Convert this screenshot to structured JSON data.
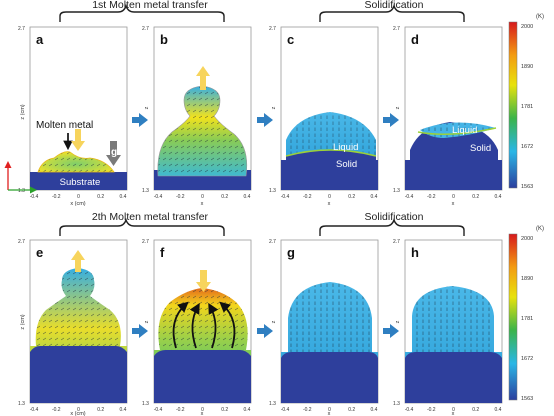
{
  "row1": {
    "transfer_label": "1st Molten metal transfer",
    "solidification_label": "Solidification"
  },
  "row2": {
    "transfer_label": "2th Molten metal transfer",
    "solidification_label": "Solidification"
  },
  "panels": [
    {
      "letter": "a"
    },
    {
      "letter": "b"
    },
    {
      "letter": "c"
    },
    {
      "letter": "d"
    },
    {
      "letter": "e"
    },
    {
      "letter": "f"
    },
    {
      "letter": "g"
    },
    {
      "letter": "h"
    }
  ],
  "axes": {
    "y_top": "2.7",
    "y_bottom": "1.3",
    "x_ticks": [
      "-0.4",
      "-0.2",
      "0",
      "0.2",
      "0.4"
    ],
    "z_label": "z",
    "z_label_cm": "z (cm)",
    "x_label": "x",
    "x_label_cm": "x (cm)"
  },
  "annotations": {
    "molten_metal": "Molten metal",
    "gravity": "g",
    "substrate": "Substrate",
    "liquid": "Liquid",
    "solid": "Solid"
  },
  "colorbar": {
    "unit": "(K)",
    "ticks": [
      "2000",
      "1890",
      "1781",
      "1672",
      "1563"
    ],
    "colors": [
      "#d7191c",
      "#f39c12",
      "#e8e20c",
      "#3bb44a",
      "#29b6e6",
      "#2b3f9e"
    ]
  },
  "colors": {
    "substrate": "#2e3f9c",
    "cool_liquid": "#35aee3",
    "hot_edge": "#f6e21d",
    "hot_core": "#e8761a",
    "arrow_up": "#f7d45c",
    "process_arrow": "#2f7fc1"
  }
}
